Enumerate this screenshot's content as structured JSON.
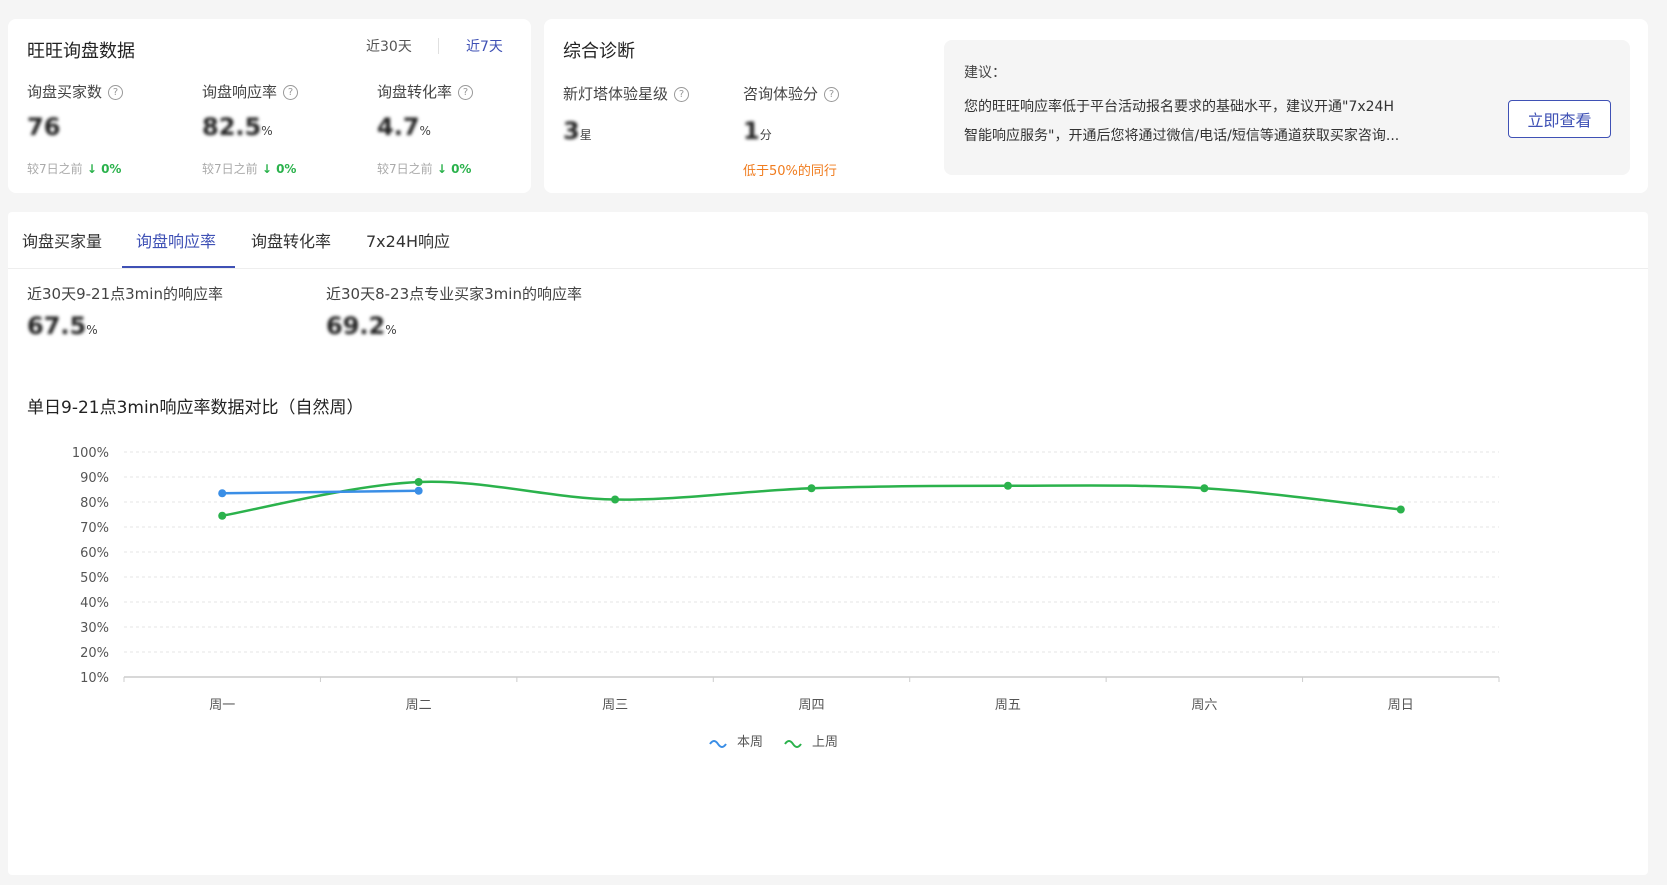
{
  "inquiry": {
    "title": "旺旺询盘数据",
    "range_tabs": [
      {
        "label": "近30天",
        "active": false
      },
      {
        "label": "近7天",
        "active": true
      }
    ],
    "metrics": [
      {
        "label": "询盘买家数",
        "value": "76",
        "unit": "",
        "compare_label": "较7日之前",
        "change": "0%"
      },
      {
        "label": "询盘响应率",
        "value": "82.5",
        "unit": "%",
        "compare_label": "较7日之前",
        "change": "0%"
      },
      {
        "label": "询盘转化率",
        "value": "4.7",
        "unit": "%",
        "compare_label": "较7日之前",
        "change": "0%"
      }
    ]
  },
  "diagnosis": {
    "title": "综合诊断",
    "metrics": [
      {
        "label": "新灯塔体验星级",
        "value": "3",
        "unit": "星",
        "note": ""
      },
      {
        "label": "咨询体验分",
        "value": "1",
        "unit": "分",
        "note": "低于50%的同行"
      }
    ],
    "suggestion": {
      "heading": "建议：",
      "line1": "您的旺旺响应率低于平台活动报名要求的基础水平，建议开通\"7x24H",
      "line2": "智能响应服务\"，开通后您将通过微信/电话/短信等通道获取买家咨询...",
      "button": "立即查看"
    }
  },
  "tabs": [
    {
      "label": "询盘买家量",
      "active": false
    },
    {
      "label": "询盘响应率",
      "active": true
    },
    {
      "label": "询盘转化率",
      "active": false
    },
    {
      "label": "7x24H响应",
      "active": false
    }
  ],
  "summary": [
    {
      "label": "近30天9-21点3min的响应率",
      "value": "67.5",
      "unit": "%"
    },
    {
      "label": "近30天8-23点专业买家3min的响应率",
      "value": "69.2",
      "unit": "%"
    }
  ],
  "colors": {
    "accent": "#3f51b5",
    "this_week": "#3a8ee6",
    "last_week": "#2bb24c",
    "warning": "#f07c1e",
    "up_down": "#2bb24c"
  },
  "chart_data": {
    "type": "line",
    "title": "单日9-21点3min响应率数据对比（自然周）",
    "categories": [
      "周一",
      "周二",
      "周三",
      "周四",
      "周五",
      "周六",
      "周日"
    ],
    "y_ticks": [
      "10%",
      "20%",
      "30%",
      "40%",
      "50%",
      "60%",
      "70%",
      "80%",
      "90%",
      "100%"
    ],
    "ylim": [
      10,
      100
    ],
    "grid": true,
    "legend_position": "bottom",
    "series": [
      {
        "name": "本周",
        "color": "#3a8ee6",
        "values": [
          83.5,
          84.5,
          null,
          null,
          null,
          null,
          null
        ]
      },
      {
        "name": "上周",
        "color": "#2bb24c",
        "values": [
          74.5,
          88,
          81,
          85.5,
          86.5,
          85.5,
          77
        ]
      }
    ]
  }
}
